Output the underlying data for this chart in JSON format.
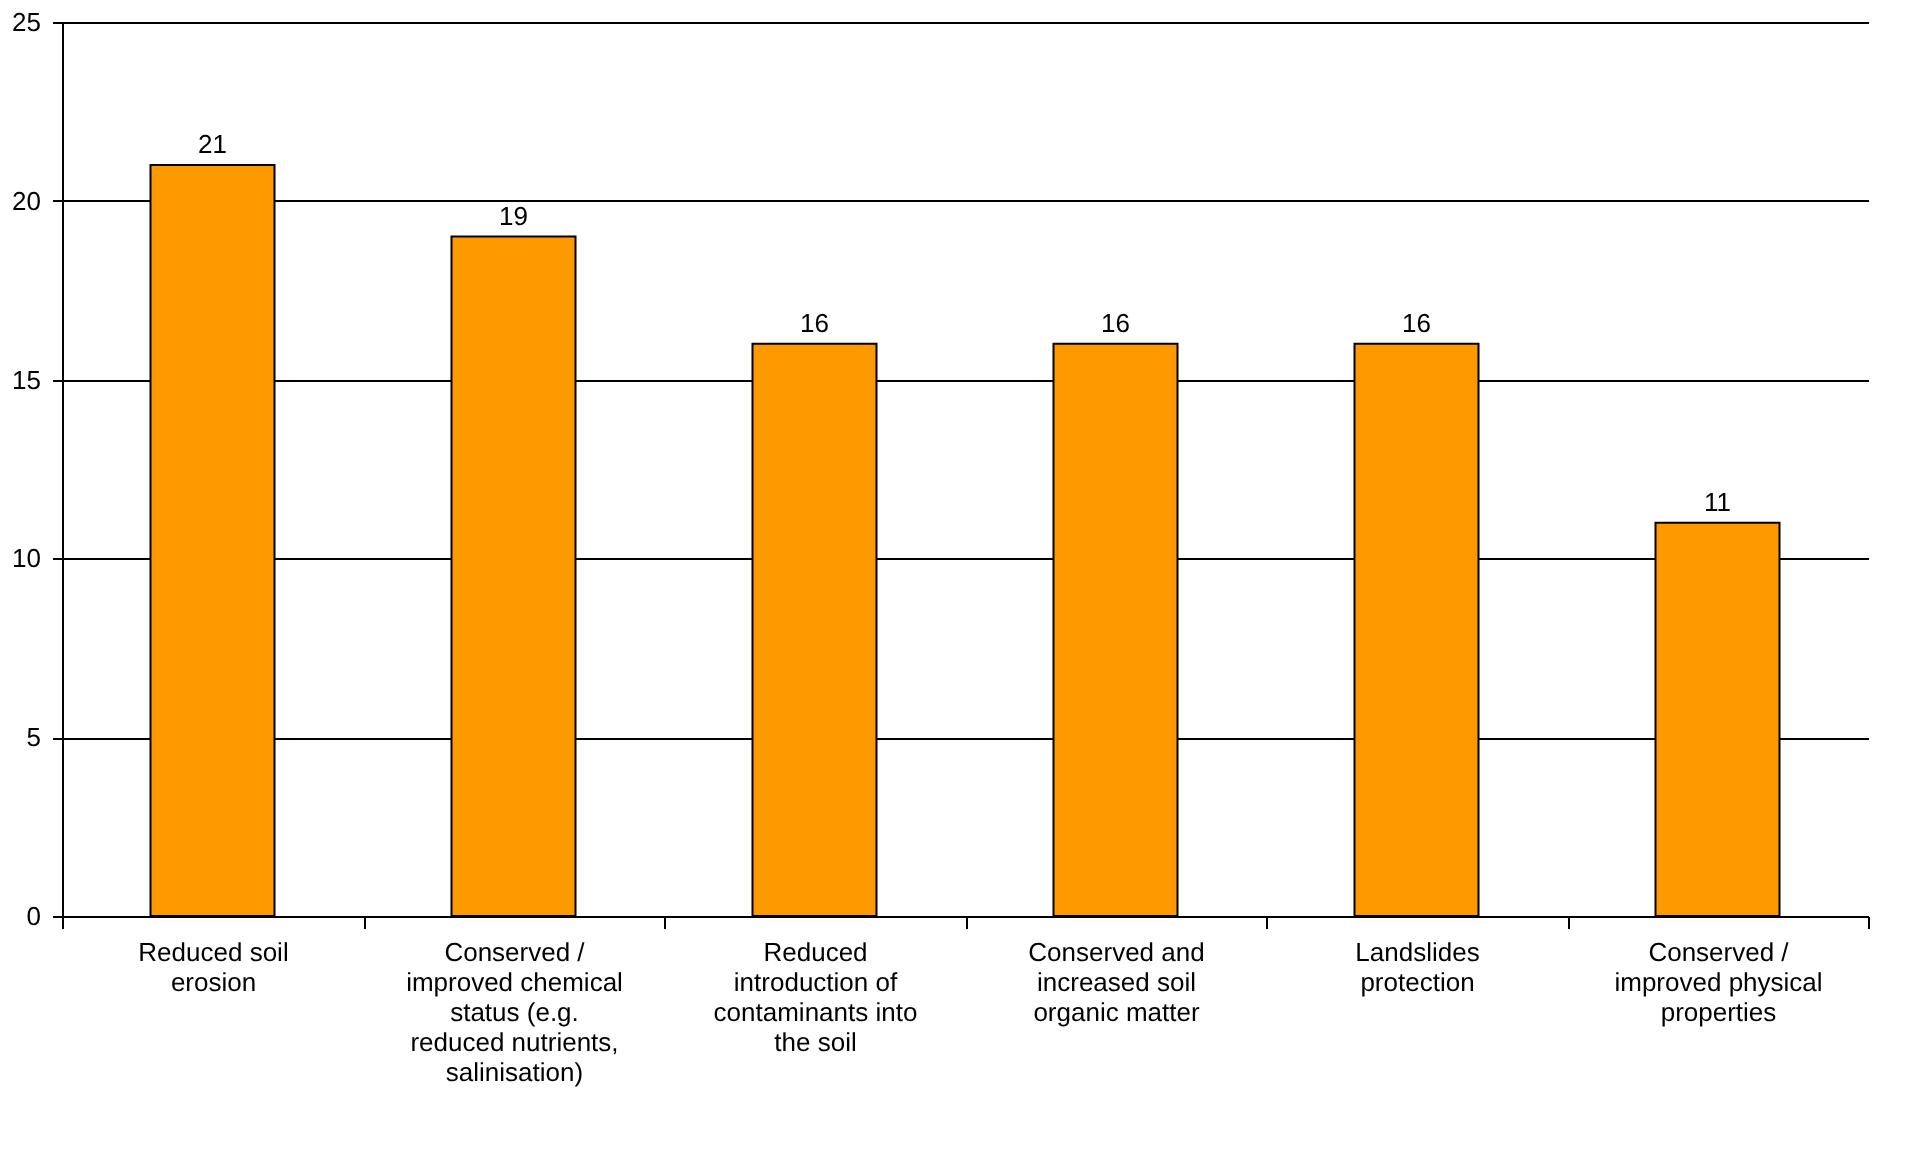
{
  "chart_data": {
    "type": "bar",
    "categories": [
      "Reduced soil erosion",
      "Conserved / improved chemical status (e.g. reduced nutrients, salinisation)",
      "Reduced introduction of contaminants into the soil",
      "Conserved and increased soil organic matter",
      "Landslides protection",
      "Conserved / improved physical properties"
    ],
    "values": [
      21,
      19,
      16,
      16,
      16,
      11
    ],
    "color": "#ff9900",
    "ylim": [
      0,
      25
    ],
    "yticks": [
      0,
      5,
      10,
      15,
      20,
      25
    ],
    "grid": "y",
    "data_labels": true
  }
}
